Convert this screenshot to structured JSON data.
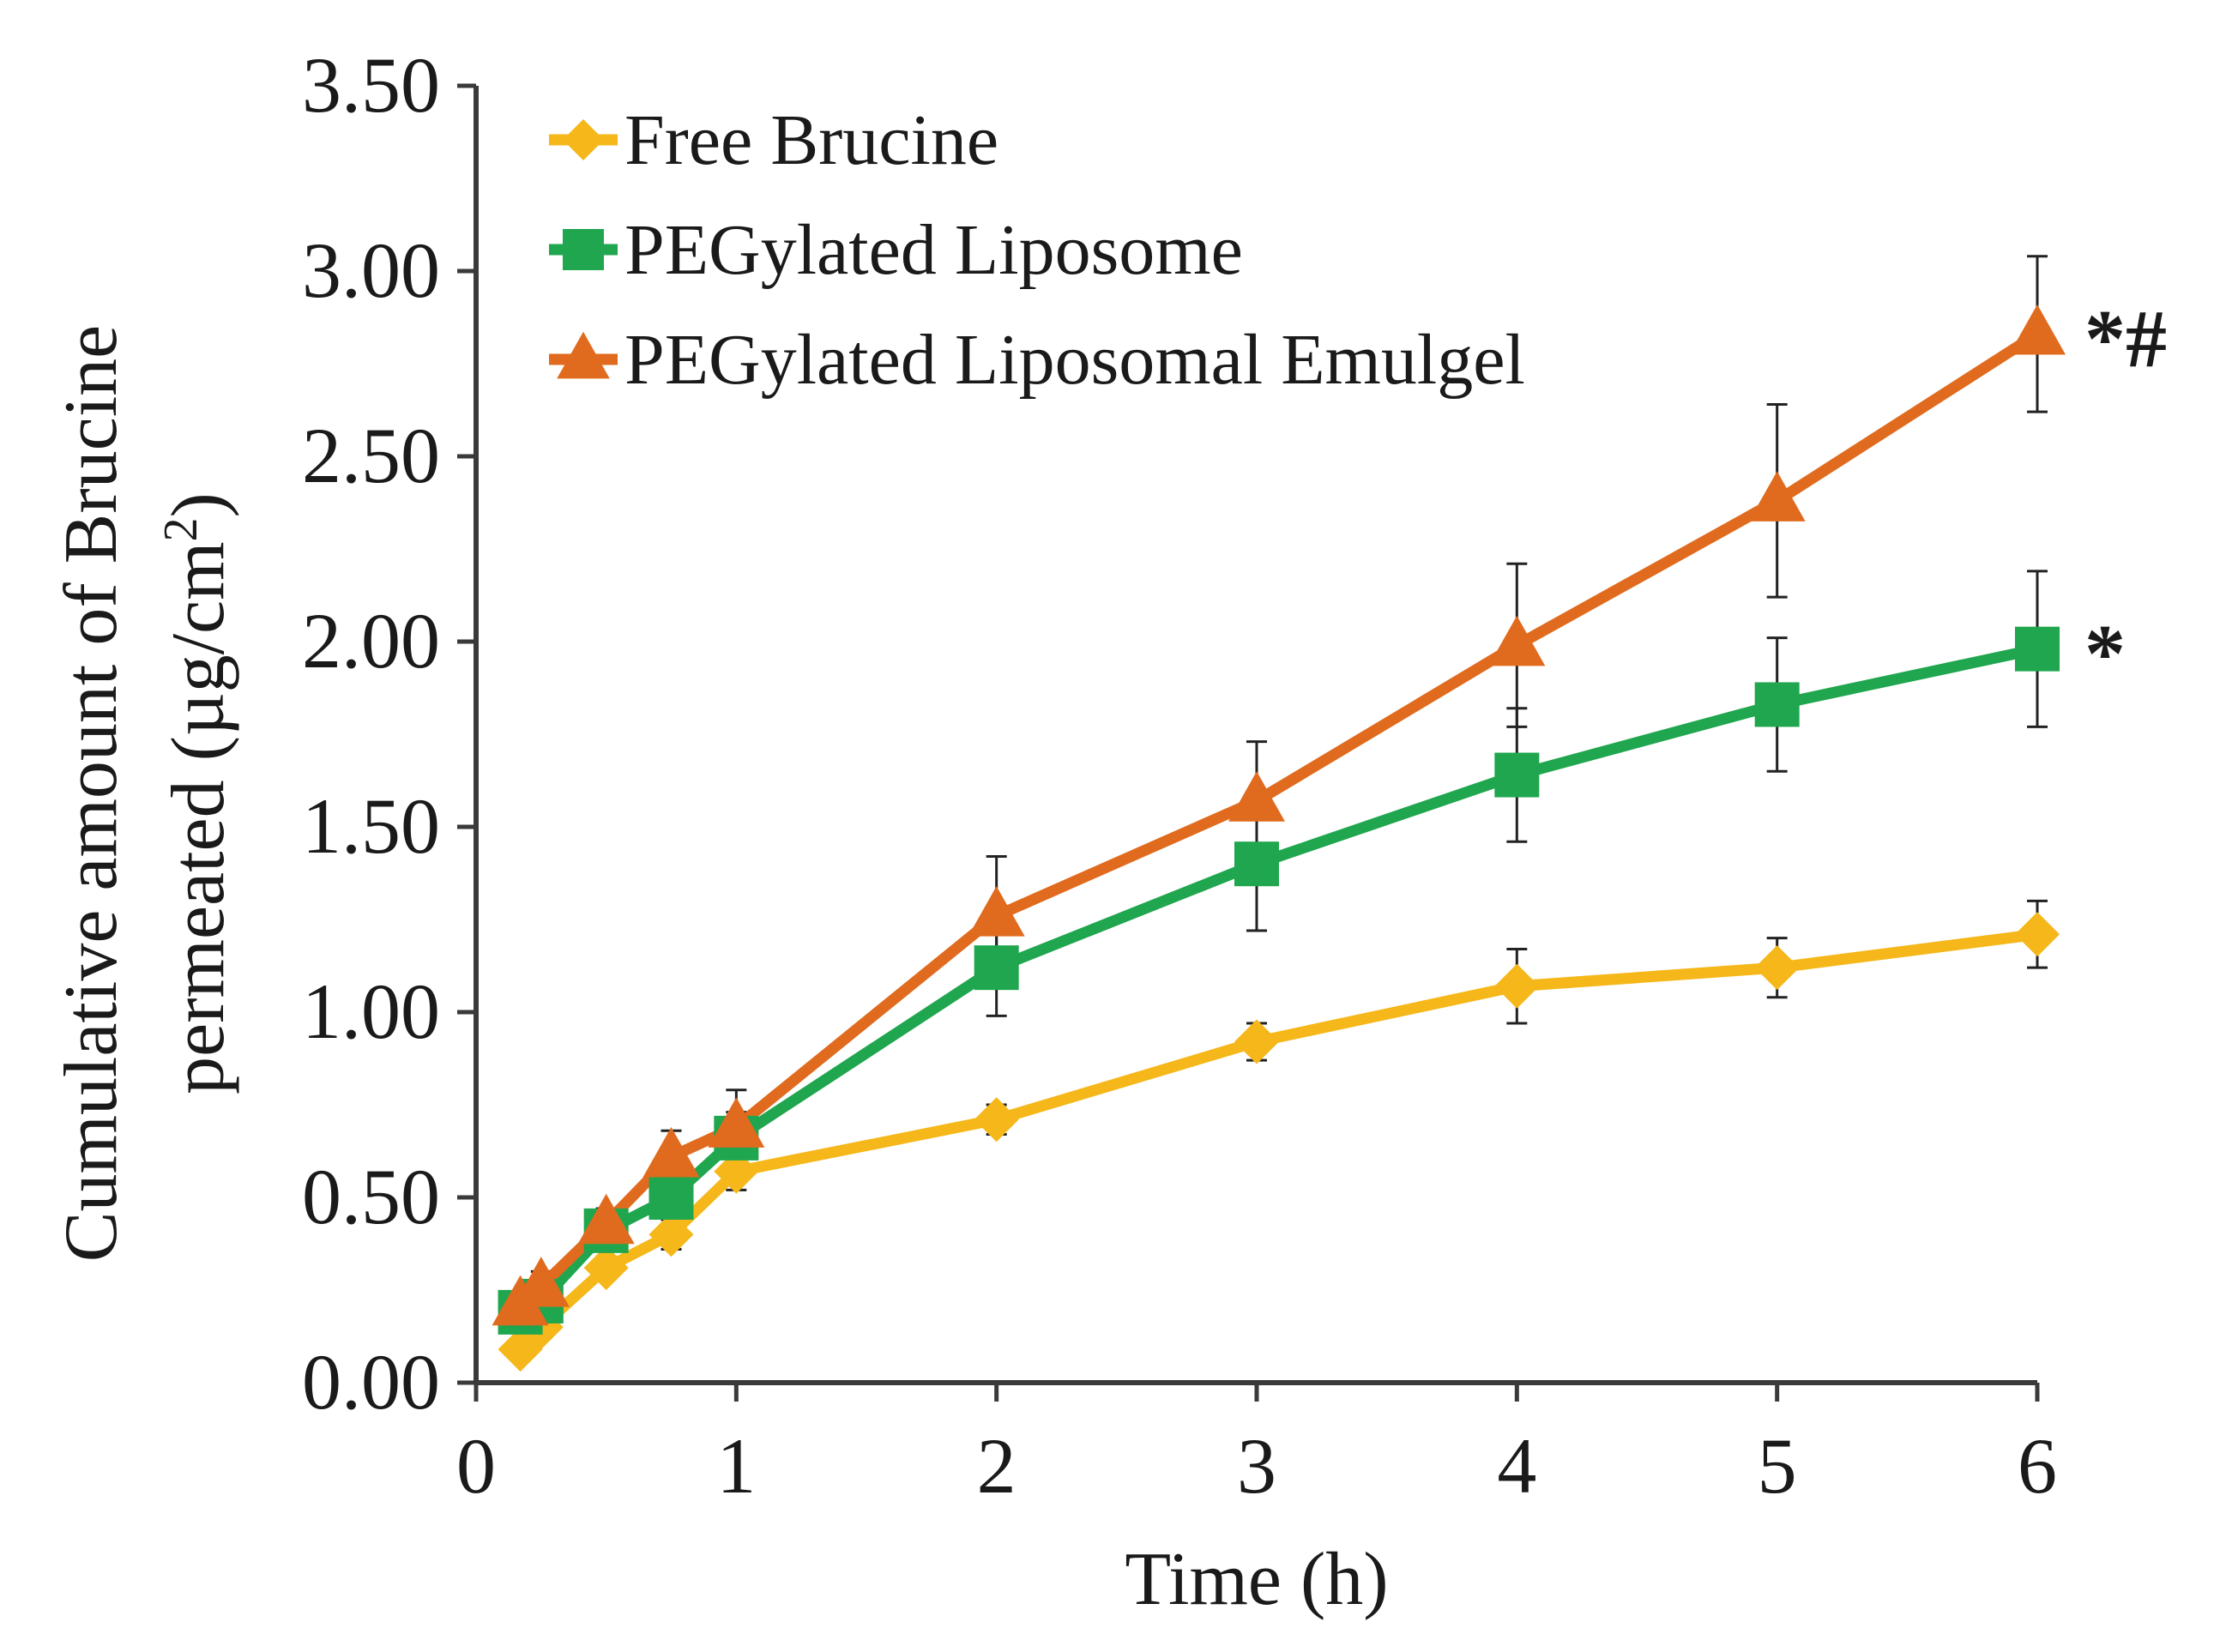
{
  "chart_data": {
    "type": "line",
    "xlabel": "Time (h)",
    "ylabel_line1": "Cumulative amount of Brucine",
    "ylabel_line2_prefix": "permeated (µg/cm",
    "ylabel_line2_sup": "2",
    "ylabel_line2_suffix": ")",
    "xlim": [
      0,
      6
    ],
    "ylim": [
      0,
      3.5
    ],
    "xticks": [
      "0",
      "1",
      "2",
      "3",
      "4",
      "5",
      "6"
    ],
    "yticks": [
      "0.00",
      "0.50",
      "1.00",
      "1.50",
      "2.00",
      "2.50",
      "3.00",
      "3.50"
    ],
    "grid": false,
    "legend_position": "top-left",
    "x": [
      0.17,
      0.25,
      0.5,
      0.75,
      1,
      2,
      3,
      4,
      5,
      6
    ],
    "series": [
      {
        "name": "Free Brucine",
        "color": "#F5B719",
        "marker": "diamond",
        "values": [
          0.09,
          0.15,
          0.31,
          0.4,
          0.57,
          0.71,
          0.92,
          1.07,
          1.12,
          1.21
        ],
        "errors": [
          0.02,
          0.03,
          0.03,
          0.04,
          0.05,
          0.04,
          0.05,
          0.1,
          0.08,
          0.09
        ]
      },
      {
        "name": "PEGylated Liposome",
        "color": "#1FA64E",
        "marker": "square",
        "values": [
          0.19,
          0.22,
          0.41,
          0.5,
          0.66,
          1.12,
          1.4,
          1.64,
          1.83,
          1.98
        ],
        "errors": [
          0.03,
          0.03,
          0.04,
          0.06,
          0.07,
          0.13,
          0.18,
          0.18,
          0.18,
          0.21
        ]
      },
      {
        "name": "PEGylated Liposomal Emulgel",
        "color": "#E06B1E",
        "marker": "triangle",
        "values": [
          0.21,
          0.26,
          0.43,
          0.61,
          0.69,
          1.26,
          1.57,
          1.99,
          2.38,
          2.83
        ],
        "errors": [
          0.03,
          0.04,
          0.04,
          0.07,
          0.1,
          0.16,
          0.16,
          0.22,
          0.26,
          0.21
        ]
      }
    ],
    "annotations": [
      {
        "text": "*#",
        "series": "PEGylated Liposomal Emulgel",
        "x": 6
      },
      {
        "text": "*",
        "series": "PEGylated Liposome",
        "x": 6
      }
    ]
  }
}
